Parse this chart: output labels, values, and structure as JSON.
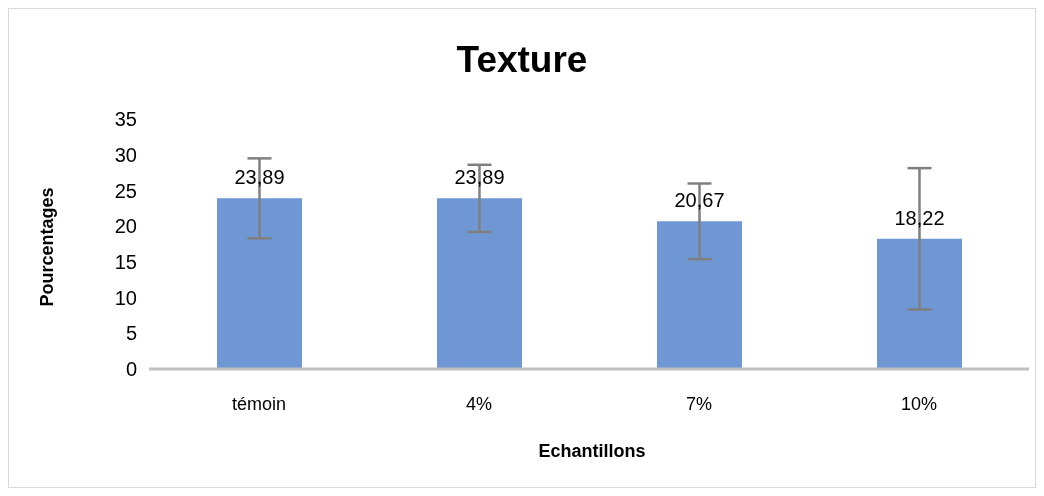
{
  "chart_data": {
    "type": "bar",
    "title": "Texture",
    "xlabel": "Echantillons",
    "ylabel": "Pourcentages",
    "categories": [
      "témoin",
      "4%",
      "7%",
      "10%"
    ],
    "values": [
      23.89,
      23.89,
      20.67,
      18.22
    ],
    "errors": [
      5.6,
      4.7,
      5.3,
      9.9
    ],
    "value_labels": [
      "23,89",
      "23,89",
      "20,67",
      "18,22"
    ],
    "color": "#6f97d3",
    "ylim": [
      0,
      35
    ],
    "yticks": [
      0,
      5,
      10,
      15,
      20,
      25,
      30,
      35
    ],
    "grid": false,
    "legend": false
  }
}
